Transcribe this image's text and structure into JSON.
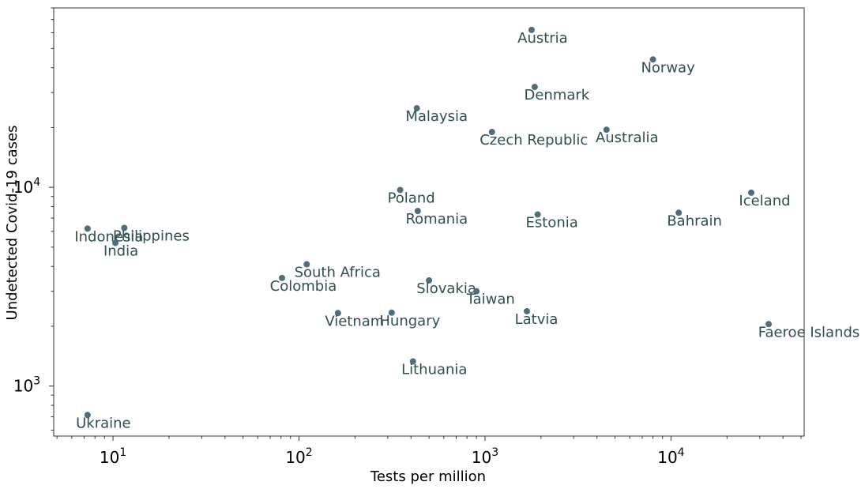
{
  "chart_data": {
    "type": "scatter",
    "title": "",
    "xlabel": "Tests per million",
    "ylabel": "Undetected Covid-19 cases",
    "xscale": "log",
    "yscale": "log",
    "xlim": [
      4.8,
      52000
    ],
    "ylim": [
      560,
      80000
    ],
    "grid": false,
    "marker_color": "#4f6d7a",
    "label_color": "#2f4f4f",
    "x_ticks": [
      {
        "value": 10,
        "base": "10",
        "exp": "1"
      },
      {
        "value": 100,
        "base": "10",
        "exp": "2"
      },
      {
        "value": 1000,
        "base": "10",
        "exp": "3"
      },
      {
        "value": 10000,
        "base": "10",
        "exp": "4"
      }
    ],
    "y_ticks": [
      {
        "value": 1000,
        "base": "10",
        "exp": "3"
      },
      {
        "value": 10000,
        "base": "10",
        "exp": "4"
      }
    ],
    "points": [
      {
        "label": "Austria",
        "x": 1780,
        "y": 62000
      },
      {
        "label": "Norway",
        "x": 8000,
        "y": 44000
      },
      {
        "label": "Denmark",
        "x": 1850,
        "y": 32000
      },
      {
        "label": "Malaysia",
        "x": 430,
        "y": 25000
      },
      {
        "label": "Czech Republic",
        "x": 1090,
        "y": 19000
      },
      {
        "label": "Australia",
        "x": 4500,
        "y": 19500
      },
      {
        "label": "Poland",
        "x": 350,
        "y": 9700
      },
      {
        "label": "Romania",
        "x": 435,
        "y": 7600
      },
      {
        "label": "Estonia",
        "x": 1920,
        "y": 7300
      },
      {
        "label": "Bahrain",
        "x": 11000,
        "y": 7450
      },
      {
        "label": "Iceland",
        "x": 27000,
        "y": 9400
      },
      {
        "label": "Indonesia",
        "x": 7.3,
        "y": 6200
      },
      {
        "label": "Philippines",
        "x": 11.5,
        "y": 6250
      },
      {
        "label": "India",
        "x": 10.3,
        "y": 5250
      },
      {
        "label": "South Africa",
        "x": 110,
        "y": 4100
      },
      {
        "label": "Colombia",
        "x": 81,
        "y": 3500
      },
      {
        "label": "Slovakia",
        "x": 500,
        "y": 3400
      },
      {
        "label": "Taiwan",
        "x": 900,
        "y": 3000
      },
      {
        "label": "Vietnam",
        "x": 162,
        "y": 2330
      },
      {
        "label": "Hungary",
        "x": 315,
        "y": 2340
      },
      {
        "label": "Latvia",
        "x": 1680,
        "y": 2380
      },
      {
        "label": "Faeroe Islands",
        "x": 33500,
        "y": 2050
      },
      {
        "label": "Lithuania",
        "x": 410,
        "y": 1330
      },
      {
        "label": "Ukraine",
        "x": 7.3,
        "y": 715
      }
    ]
  }
}
